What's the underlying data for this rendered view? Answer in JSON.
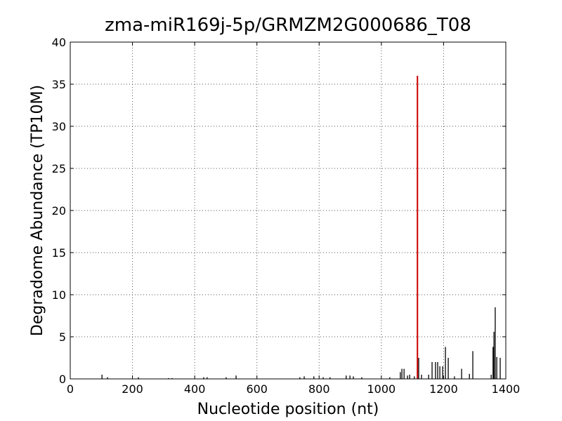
{
  "chart_data": {
    "type": "stem",
    "title": "zma-miR169j-5p/GRMZM2G000686_T08",
    "x_label": "Nucleotide position (nt)",
    "y_label": "Degradome Abundance (TP10M)",
    "series": [
      {
        "color": "#000000",
        "x": [
          102,
          120,
          219,
          316,
          327,
          429,
          440,
          501,
          533,
          738,
          752,
          783,
          813,
          835,
          887,
          899,
          910,
          937,
          1027,
          1061,
          1066,
          1073,
          1084,
          1091,
          1106,
          1120,
          1129,
          1152,
          1163,
          1174,
          1181,
          1188,
          1197,
          1206,
          1215,
          1235,
          1258,
          1283,
          1294,
          1353,
          1359,
          1362,
          1366,
          1371,
          1382
        ],
        "values": [
          0.5,
          0.2,
          0.2,
          0.1,
          0.1,
          0.2,
          0.2,
          0.2,
          0.4,
          0.2,
          0.3,
          0.3,
          0.2,
          0.2,
          0.4,
          0.4,
          0.3,
          0.2,
          0.2,
          0.8,
          1.2,
          1.2,
          0.4,
          0.5,
          0.3,
          2.5,
          0.5,
          0.5,
          2,
          2,
          2,
          1.5,
          1.5,
          3.8,
          2.5,
          0.3,
          1.2,
          0.6,
          3.3,
          0.5,
          3.8,
          5.6,
          8.5,
          2.6,
          2.5
        ]
      },
      {
        "color": "#cc0000",
        "x": [
          1116
        ],
        "values": [
          36
        ]
      }
    ],
    "xlim": [
      0,
      1400
    ],
    "xticks": [
      0,
      200,
      400,
      600,
      800,
      1000,
      1200,
      1400
    ],
    "ylim": [
      0,
      40
    ],
    "yticks": [
      0,
      5,
      10,
      15,
      20,
      25,
      30,
      35,
      40
    ],
    "grid": true
  }
}
